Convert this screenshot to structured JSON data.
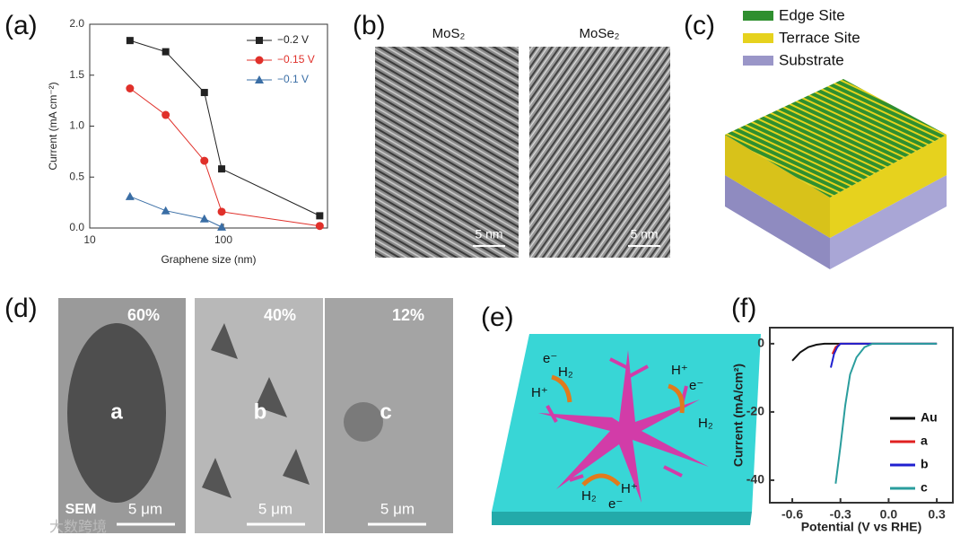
{
  "chart_data": [
    {
      "type": "line",
      "xlabel": "Graphene size (nm)",
      "ylabel": "Current (mA cm⁻²)",
      "xscale": "log",
      "x": [
        20,
        37,
        72,
        97,
        525
      ],
      "xlim": [
        10,
        600
      ],
      "xticks": [
        10,
        100
      ],
      "ylim": [
        0,
        2
      ],
      "yticks": [
        {
          "value": 0,
          "label": "0.0"
        },
        0.5,
        {
          "value": 1,
          "label": "1.0"
        },
        1.5,
        {
          "value": 2,
          "label": "2.0"
        }
      ],
      "legend": "upper right",
      "series": [
        {
          "name": "−0.2 V",
          "color": "#222222",
          "marker": "square",
          "values": [
            1.84,
            1.73,
            1.33,
            0.58,
            0.12
          ]
        },
        {
          "name": "−0.15 V",
          "color": "#e0302a",
          "marker": "circle",
          "values": [
            1.37,
            1.11,
            0.66,
            0.16,
            0.02
          ]
        },
        {
          "name": "−0.1 V",
          "color": "#3a6ea5",
          "marker": "triangle",
          "values": [
            0.31,
            0.17,
            0.09,
            0.01,
            null
          ]
        }
      ]
    },
    {
      "type": "line",
      "xlabel": "Potential (V vs RHE)",
      "ylabel": "Current (mA/cm²)",
      "xlim": [
        -0.74,
        0.4
      ],
      "xticks": [
        -0.6,
        -0.3,
        {
          "value": 0,
          "label": "0.0"
        },
        0.3
      ],
      "ylim": [
        -46.6,
        4.7
      ],
      "yticks": [
        0,
        -20,
        -40
      ],
      "legend": "lower right",
      "series": [
        {
          "name": "Au",
          "color": "#111111",
          "x": [
            -0.6,
            -0.55,
            -0.5,
            -0.45,
            -0.4,
            0,
            0.3
          ],
          "values": [
            -5,
            -2.5,
            -1,
            -0.3,
            0,
            0,
            0
          ]
        },
        {
          "name": "a",
          "color": "#e02020",
          "x": [
            -0.35,
            -0.33,
            -0.3,
            0,
            0.3
          ],
          "values": [
            -3,
            -1,
            0,
            0,
            0
          ]
        },
        {
          "name": "b",
          "color": "#2020d0",
          "x": [
            -0.36,
            -0.34,
            -0.32,
            -0.3,
            0,
            0.3
          ],
          "values": [
            -7,
            -3,
            -1,
            0,
            0,
            0
          ]
        },
        {
          "name": "c",
          "color": "#2a9d9d",
          "x": [
            -0.33,
            -0.3,
            -0.27,
            -0.24,
            -0.2,
            -0.15,
            -0.1,
            0.3
          ],
          "values": [
            -41,
            -30,
            -18,
            -9,
            -4,
            -1,
            0,
            0
          ]
        }
      ]
    }
  ],
  "panel_labels": [
    "(a)",
    "(b)",
    "(c)",
    "(d)",
    "(e)",
    "(f)"
  ],
  "panel_b": {
    "labels": [
      "MoS₂",
      "MoSe₂"
    ],
    "scale_bars": [
      "5 nm",
      "5 nm"
    ]
  },
  "panel_c": {
    "legend": [
      "Edge Site",
      "Terrace Site",
      "Substrate"
    ]
  },
  "panel_d": {
    "fractions": [
      "60%",
      "40%",
      "12%"
    ],
    "samples": [
      "a",
      "b",
      "c"
    ],
    "method": "SEM",
    "scale_bars": [
      "5 μm",
      "5 μm",
      "5 μm"
    ]
  },
  "panel_e": {
    "labels": [
      "e⁻",
      "H₂",
      "H⁺",
      "H⁺",
      "e⁻",
      "H₂",
      "H₂",
      "H⁺",
      "e⁻"
    ]
  },
  "watermark": "大数跨境"
}
